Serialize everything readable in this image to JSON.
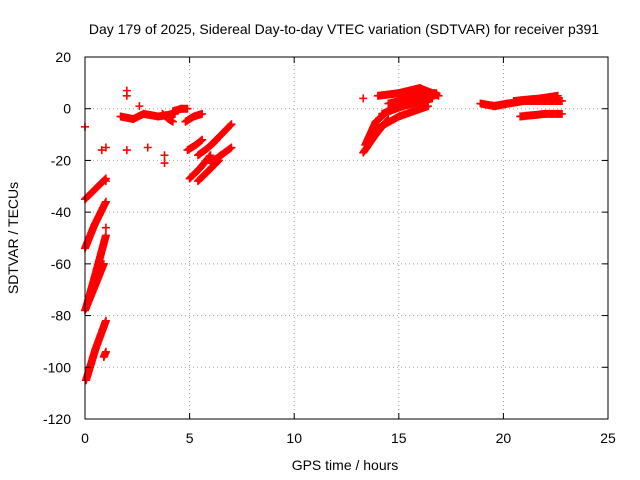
{
  "chart_data": {
    "type": "scatter",
    "title": "Day 179 of 2025, Sidereal Day-to-day VTEC variation (SDTVAR) for receiver p391",
    "xlabel": "GPS time / hours",
    "ylabel": "SDTVAR / TECUs",
    "xlim": [
      0,
      25
    ],
    "ylim": [
      -120,
      20
    ],
    "xticks": [
      0,
      5,
      10,
      15,
      20,
      25
    ],
    "yticks": [
      -120,
      -100,
      -80,
      -60,
      -40,
      -20,
      0,
      20
    ],
    "grid": true,
    "marker": "plus",
    "series": [
      {
        "name": "SDTVAR",
        "color": "#ff0000",
        "segments": [
          {
            "x": [
              0.0,
              0.5,
              1.0
            ],
            "y": [
              -35,
              -31,
              -27
            ]
          },
          {
            "x": [
              0.0,
              0.45,
              1.0
            ],
            "y": [
              -54,
              -45,
              -36
            ]
          },
          {
            "x": [
              0.05,
              0.5,
              1.0
            ],
            "y": [
              -77,
              -64,
              -49
            ]
          },
          {
            "x": [
              0.0,
              0.5,
              0.9
            ],
            "y": [
              -78,
              -68,
              -60
            ]
          },
          {
            "x": [
              0.05,
              0.5,
              1.0
            ],
            "y": [
              -105,
              -93,
              -82
            ]
          },
          {
            "x": [
              0.9,
              1.0
            ],
            "y": [
              -96,
              -94
            ]
          },
          {
            "x": [
              1.7,
              2.3,
              2.8
            ],
            "y": [
              -3,
              -4,
              -2
            ]
          },
          {
            "x": [
              2.8,
              3.5,
              4.3
            ],
            "y": [
              -2,
              -3,
              -2
            ]
          },
          {
            "x": [
              4.2,
              4.6,
              4.9
            ],
            "y": [
              -1,
              0,
              0
            ]
          },
          {
            "x": [
              3.7,
              4.0,
              4.2
            ],
            "y": [
              -2,
              -4,
              -5
            ]
          },
          {
            "x": [
              4.8,
              5.2,
              5.6
            ],
            "y": [
              -5,
              -3,
              -2
            ]
          },
          {
            "x": [
              4.9,
              5.3,
              5.6
            ],
            "y": [
              -16,
              -14,
              -12
            ]
          },
          {
            "x": [
              5.0,
              5.5,
              6.0
            ],
            "y": [
              -27,
              -23,
              -18
            ]
          },
          {
            "x": [
              5.4,
              5.9,
              6.4
            ],
            "y": [
              -28,
              -24,
              -20
            ]
          },
          {
            "x": [
              5.4,
              5.9,
              6.3
            ],
            "y": [
              -18,
              -15,
              -12
            ]
          },
          {
            "x": [
              5.9,
              6.4,
              7.0
            ],
            "y": [
              -15,
              -11,
              -6
            ]
          },
          {
            "x": [
              6.0,
              6.5,
              7.0
            ],
            "y": [
              -21,
              -18,
              -15
            ]
          },
          {
            "x": [
              13.3,
              13.9,
              14.5
            ],
            "y": [
              -17,
              -10,
              -4
            ]
          },
          {
            "x": [
              13.4,
              13.9,
              14.6
            ],
            "y": [
              -14,
              -5,
              0
            ]
          },
          {
            "x": [
              13.9,
              15.0,
              16.4
            ],
            "y": [
              -8,
              -3,
              1
            ]
          },
          {
            "x": [
              14.2,
              15.2,
              16.6
            ],
            "y": [
              -2,
              1,
              4
            ]
          },
          {
            "x": [
              14.5,
              15.5,
              16.7
            ],
            "y": [
              2,
              4,
              6
            ]
          },
          {
            "x": [
              14.0,
              15.0,
              16.8
            ],
            "y": [
              5,
              6,
              6
            ]
          },
          {
            "x": [
              15.0,
              16.0,
              16.9
            ],
            "y": [
              6,
              8,
              5
            ]
          },
          {
            "x": [
              18.9,
              19.6,
              20.2
            ],
            "y": [
              2,
              1,
              2
            ]
          },
          {
            "x": [
              19.5,
              21.0,
              22.8
            ],
            "y": [
              1,
              3,
              3
            ]
          },
          {
            "x": [
              20.5,
              21.8,
              22.6
            ],
            "y": [
              3,
              4,
              5
            ]
          },
          {
            "x": [
              20.8,
              22.0,
              22.8
            ],
            "y": [
              -3,
              -2,
              -2
            ]
          }
        ],
        "points": [
          [
            0.0,
            -7
          ],
          [
            0.8,
            -16
          ],
          [
            1.0,
            -15
          ],
          [
            1.0,
            -28
          ],
          [
            1.0,
            -46
          ],
          [
            2.0,
            7
          ],
          [
            2.0,
            5
          ],
          [
            2.0,
            -16
          ],
          [
            2.6,
            1
          ],
          [
            3.0,
            -15
          ],
          [
            3.8,
            -18
          ],
          [
            3.8,
            -21
          ],
          [
            13.3,
            4
          ]
        ]
      }
    ]
  }
}
